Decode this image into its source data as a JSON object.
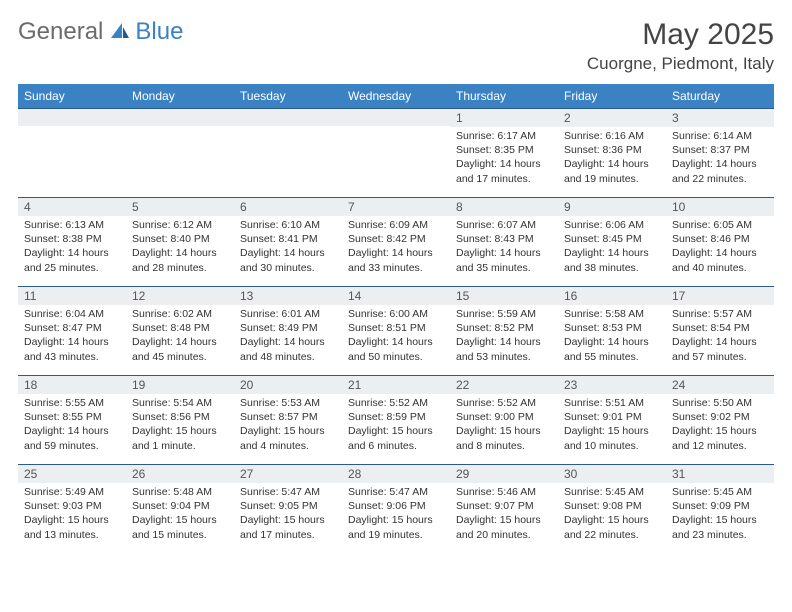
{
  "logo": {
    "general": "General",
    "blue": "Blue"
  },
  "title": "May 2025",
  "location": "Cuorgne, Piedmont, Italy",
  "colors": {
    "header_bg": "#3b82c4",
    "header_text": "#ffffff",
    "daynum_bg": "#eceff1",
    "row_border": "#2d5a87",
    "body_text": "#333333",
    "logo_gray": "#6b6b6b",
    "logo_blue": "#3b82c4"
  },
  "dayNames": [
    "Sunday",
    "Monday",
    "Tuesday",
    "Wednesday",
    "Thursday",
    "Friday",
    "Saturday"
  ],
  "weeks": [
    [
      null,
      null,
      null,
      null,
      {
        "n": "1",
        "sr": "6:17 AM",
        "ss": "8:35 PM",
        "dl": "14 hours and 17 minutes."
      },
      {
        "n": "2",
        "sr": "6:16 AM",
        "ss": "8:36 PM",
        "dl": "14 hours and 19 minutes."
      },
      {
        "n": "3",
        "sr": "6:14 AM",
        "ss": "8:37 PM",
        "dl": "14 hours and 22 minutes."
      }
    ],
    [
      {
        "n": "4",
        "sr": "6:13 AM",
        "ss": "8:38 PM",
        "dl": "14 hours and 25 minutes."
      },
      {
        "n": "5",
        "sr": "6:12 AM",
        "ss": "8:40 PM",
        "dl": "14 hours and 28 minutes."
      },
      {
        "n": "6",
        "sr": "6:10 AM",
        "ss": "8:41 PM",
        "dl": "14 hours and 30 minutes."
      },
      {
        "n": "7",
        "sr": "6:09 AM",
        "ss": "8:42 PM",
        "dl": "14 hours and 33 minutes."
      },
      {
        "n": "8",
        "sr": "6:07 AM",
        "ss": "8:43 PM",
        "dl": "14 hours and 35 minutes."
      },
      {
        "n": "9",
        "sr": "6:06 AM",
        "ss": "8:45 PM",
        "dl": "14 hours and 38 minutes."
      },
      {
        "n": "10",
        "sr": "6:05 AM",
        "ss": "8:46 PM",
        "dl": "14 hours and 40 minutes."
      }
    ],
    [
      {
        "n": "11",
        "sr": "6:04 AM",
        "ss": "8:47 PM",
        "dl": "14 hours and 43 minutes."
      },
      {
        "n": "12",
        "sr": "6:02 AM",
        "ss": "8:48 PM",
        "dl": "14 hours and 45 minutes."
      },
      {
        "n": "13",
        "sr": "6:01 AM",
        "ss": "8:49 PM",
        "dl": "14 hours and 48 minutes."
      },
      {
        "n": "14",
        "sr": "6:00 AM",
        "ss": "8:51 PM",
        "dl": "14 hours and 50 minutes."
      },
      {
        "n": "15",
        "sr": "5:59 AM",
        "ss": "8:52 PM",
        "dl": "14 hours and 53 minutes."
      },
      {
        "n": "16",
        "sr": "5:58 AM",
        "ss": "8:53 PM",
        "dl": "14 hours and 55 minutes."
      },
      {
        "n": "17",
        "sr": "5:57 AM",
        "ss": "8:54 PM",
        "dl": "14 hours and 57 minutes."
      }
    ],
    [
      {
        "n": "18",
        "sr": "5:55 AM",
        "ss": "8:55 PM",
        "dl": "14 hours and 59 minutes."
      },
      {
        "n": "19",
        "sr": "5:54 AM",
        "ss": "8:56 PM",
        "dl": "15 hours and 1 minute."
      },
      {
        "n": "20",
        "sr": "5:53 AM",
        "ss": "8:57 PM",
        "dl": "15 hours and 4 minutes."
      },
      {
        "n": "21",
        "sr": "5:52 AM",
        "ss": "8:59 PM",
        "dl": "15 hours and 6 minutes."
      },
      {
        "n": "22",
        "sr": "5:52 AM",
        "ss": "9:00 PM",
        "dl": "15 hours and 8 minutes."
      },
      {
        "n": "23",
        "sr": "5:51 AM",
        "ss": "9:01 PM",
        "dl": "15 hours and 10 minutes."
      },
      {
        "n": "24",
        "sr": "5:50 AM",
        "ss": "9:02 PM",
        "dl": "15 hours and 12 minutes."
      }
    ],
    [
      {
        "n": "25",
        "sr": "5:49 AM",
        "ss": "9:03 PM",
        "dl": "15 hours and 13 minutes."
      },
      {
        "n": "26",
        "sr": "5:48 AM",
        "ss": "9:04 PM",
        "dl": "15 hours and 15 minutes."
      },
      {
        "n": "27",
        "sr": "5:47 AM",
        "ss": "9:05 PM",
        "dl": "15 hours and 17 minutes."
      },
      {
        "n": "28",
        "sr": "5:47 AM",
        "ss": "9:06 PM",
        "dl": "15 hours and 19 minutes."
      },
      {
        "n": "29",
        "sr": "5:46 AM",
        "ss": "9:07 PM",
        "dl": "15 hours and 20 minutes."
      },
      {
        "n": "30",
        "sr": "5:45 AM",
        "ss": "9:08 PM",
        "dl": "15 hours and 22 minutes."
      },
      {
        "n": "31",
        "sr": "5:45 AM",
        "ss": "9:09 PM",
        "dl": "15 hours and 23 minutes."
      }
    ]
  ],
  "labels": {
    "sunrise": "Sunrise: ",
    "sunset": "Sunset: ",
    "daylight": "Daylight: "
  }
}
